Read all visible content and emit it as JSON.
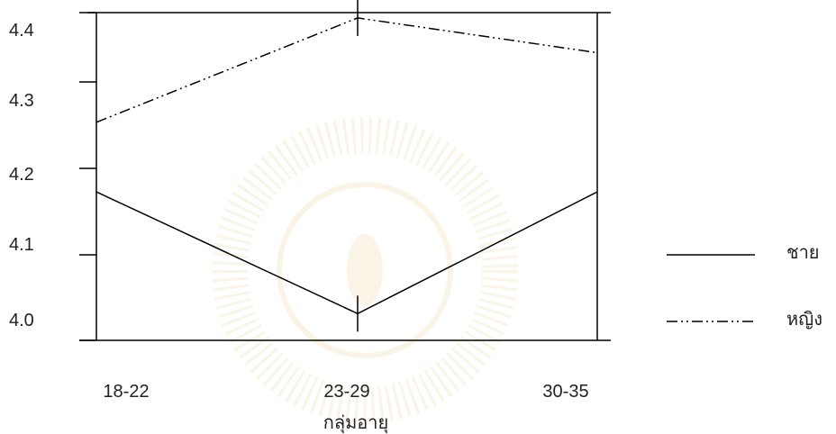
{
  "chart_data": {
    "type": "line",
    "title": "",
    "xlabel": "กลุ่มอายุ",
    "ylabel": "",
    "categories": [
      "18-22",
      "23-29",
      "30-35"
    ],
    "yticks": [
      "4.0",
      "4.1",
      "4.2",
      "4.3",
      "4.4"
    ],
    "ylim": [
      3.98,
      4.45
    ],
    "grid": false,
    "legend_position": "right",
    "series": [
      {
        "name": "ชาย",
        "values": [
          4.15,
          4.01,
          4.15
        ],
        "line_style": "solid"
      },
      {
        "name": "หญิง",
        "values": [
          4.23,
          4.35,
          4.31
        ],
        "line_style": "dash-dot-dot"
      }
    ]
  }
}
